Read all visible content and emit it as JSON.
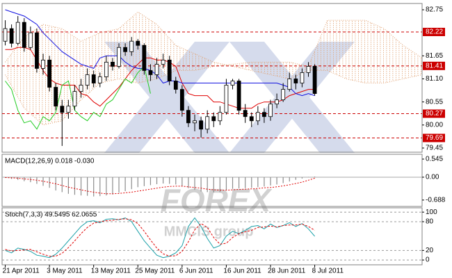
{
  "chart_data": [
    {
      "type": "candlestick",
      "xlim": [
        -0.5,
        66
      ],
      "ylim": [
        79.35,
        82.9
      ],
      "yticks": [
        79.45,
        {
          "value": 80,
          "label": "80.00"
        },
        80.55,
        {
          "value": 81.1,
          "label": "81.10"
        },
        81.65,
        82.75
      ],
      "grid": false,
      "open": [
        82.0,
        82.3,
        81.95,
        82.45,
        81.85,
        82.2,
        81.35,
        81.55,
        80.9,
        80.45,
        80.3,
        80.45,
        80.8,
        80.95,
        81.2,
        81.0,
        81.15,
        81.5,
        81.4,
        81.85,
        81.75,
        82.0,
        81.9,
        81.3,
        81.2,
        81.45,
        81.55,
        81.05,
        80.85,
        80.35,
        80.05,
        80.1,
        79.9,
        80.2,
        80.1,
        80.3,
        80.95,
        81.05,
        80.35,
        80.2,
        80.1,
        80.3,
        80.2,
        80.5,
        80.6,
        80.85,
        81.1,
        81.0,
        81.25,
        81.4
      ],
      "high": [
        82.5,
        82.4,
        82.6,
        82.55,
        82.35,
        82.3,
        81.7,
        81.65,
        81.0,
        80.6,
        80.6,
        80.95,
        81.1,
        81.35,
        81.3,
        81.25,
        81.65,
        81.6,
        81.95,
        81.95,
        82.1,
        82.05,
        81.95,
        81.45,
        81.6,
        81.7,
        81.65,
        81.15,
        80.95,
        80.45,
        80.25,
        80.2,
        80.35,
        80.3,
        80.45,
        81.1,
        81.1,
        81.1,
        80.5,
        80.3,
        80.45,
        80.4,
        80.6,
        80.75,
        81.0,
        81.25,
        81.2,
        81.35,
        81.5,
        81.45
      ],
      "low": [
        81.9,
        81.85,
        81.9,
        81.75,
        81.8,
        81.25,
        81.2,
        80.8,
        80.35,
        79.5,
        80.15,
        80.35,
        80.65,
        80.85,
        80.9,
        80.9,
        81.05,
        81.3,
        81.35,
        81.65,
        81.65,
        81.8,
        81.2,
        81.05,
        81.1,
        81.35,
        80.95,
        80.75,
        80.2,
        79.95,
        79.85,
        79.7,
        79.8,
        79.95,
        80.0,
        80.25,
        80.85,
        80.25,
        80.05,
        79.95,
        80.0,
        80.05,
        80.1,
        80.4,
        80.55,
        80.8,
        80.85,
        80.9,
        81.15,
        80.7
      ],
      "close": [
        82.3,
        81.95,
        82.45,
        81.85,
        82.2,
        81.35,
        81.55,
        80.9,
        80.45,
        80.3,
        80.45,
        80.8,
        80.95,
        81.2,
        81.0,
        81.15,
        81.5,
        81.4,
        81.85,
        81.75,
        82.0,
        81.9,
        81.3,
        81.2,
        81.45,
        81.55,
        81.05,
        80.85,
        80.35,
        80.05,
        80.1,
        79.9,
        80.2,
        80.1,
        80.3,
        80.95,
        81.05,
        80.35,
        80.2,
        80.1,
        80.3,
        80.2,
        80.5,
        80.6,
        80.85,
        81.1,
        81.0,
        81.25,
        81.4,
        80.75
      ],
      "up_color": "#ffffff",
      "down_color": "#000000",
      "series": [
        {
          "color": "#e00000",
          "values": [
            81.8,
            81.8,
            81.85,
            81.85,
            81.8,
            81.55,
            81.3,
            81.1,
            81.0,
            80.95,
            80.95,
            80.95,
            80.75,
            80.7,
            80.55,
            80.45,
            80.6,
            80.75,
            80.9,
            81.1,
            81.3,
            81.45,
            81.6,
            81.6,
            81.55,
            81.55,
            81.5,
            81.4,
            81.0,
            80.75,
            80.7,
            80.7,
            80.7,
            80.55,
            80.55,
            80.5,
            80.45,
            80.4,
            80.4,
            80.4,
            80.5,
            80.55,
            80.55,
            80.55,
            80.6,
            80.7,
            80.75,
            80.8,
            80.85,
            80.85
          ]
        },
        {
          "color": "#1010e0",
          "values": [
            82.75,
            82.7,
            82.65,
            82.6,
            82.5,
            82.4,
            82.2,
            82.05,
            81.9,
            81.75,
            81.65,
            81.55,
            81.45,
            81.4,
            81.35,
            81.6,
            81.65,
            81.65,
            81.65,
            81.5,
            81.4,
            81.35,
            81.35,
            81.3,
            81.2,
            81.0,
            81.05,
            81.05,
            81.0,
            81.0,
            81.0,
            81.0,
            81.0,
            81.0,
            81.0,
            81.0,
            81.0,
            81.0,
            81.0,
            81.0,
            81.0,
            81.0,
            81.0,
            81.0,
            80.95,
            80.9,
            80.75,
            80.7,
            80.75,
            80.7
          ]
        },
        {
          "color": "#22cc22",
          "values": [
            81.05,
            80.85,
            80.35,
            80.05,
            80.1,
            79.9,
            80.2,
            80.1,
            80.3,
            80.95,
            81.05,
            80.35,
            80.2,
            80.1,
            80.3,
            80.2,
            80.5,
            80.6,
            80.85,
            81.1,
            81.0,
            81.25,
            81.4,
            80.75,
            null,
            null,
            null,
            null,
            null,
            null,
            null,
            null,
            null,
            null,
            null,
            null,
            null,
            null,
            null,
            null,
            null,
            null,
            null,
            null,
            null,
            null,
            null,
            null,
            null,
            null
          ]
        }
      ],
      "cloud": {
        "color": "#e0a070",
        "x": [
          0,
          3,
          6,
          9,
          12,
          15,
          18,
          21,
          24,
          27,
          30,
          33,
          36,
          39,
          42,
          45,
          48,
          51,
          54,
          57,
          60,
          63,
          66
        ],
        "span_a": [
          81.5,
          82.1,
          82.4,
          82.3,
          82.0,
          82.2,
          82.3,
          82.7,
          82.4,
          81.9,
          81.7,
          81.5,
          81.4,
          81.3,
          81.2,
          81.1,
          81.3,
          81.3,
          81.1,
          81.0,
          81.0,
          81.1,
          81.2
        ],
        "span_b": [
          81.2,
          80.4,
          80.0,
          80.1,
          80.6,
          81.0,
          81.1,
          81.0,
          81.1,
          81.3,
          81.3,
          81.4,
          81.45,
          81.5,
          81.5,
          81.5,
          81.4,
          82.5,
          82.5,
          82.5,
          82.3,
          81.9,
          81.6
        ]
      },
      "levels": [
        82.22,
        81.41,
        80.27,
        79.69
      ],
      "level_color": "#cc0000"
    },
    {
      "type": "bar",
      "title": "MACD(12,26,9) 0.018 -0.030",
      "xlim": [
        -0.5,
        66
      ],
      "ylim": [
        -0.88,
        0.69
      ],
      "yticks": [
        -0.688,
        {
          "value": 0,
          "label": "0.00"
        },
        0.545
      ],
      "grid": false,
      "series": [
        {
          "kind": "bar",
          "color": "#8c8c8c",
          "values": [
            -0.02,
            -0.05,
            -0.08,
            -0.12,
            -0.15,
            -0.2,
            -0.26,
            -0.32,
            -0.4,
            -0.45,
            -0.5,
            -0.53,
            -0.55,
            -0.56,
            -0.58,
            -0.57,
            -0.55,
            -0.52,
            -0.47,
            -0.42,
            -0.36,
            -0.3,
            -0.27,
            -0.24,
            -0.21,
            -0.19,
            -0.2,
            -0.22,
            -0.27,
            -0.33,
            -0.38,
            -0.43,
            -0.45,
            -0.46,
            -0.45,
            -0.4,
            -0.35,
            -0.34,
            -0.33,
            -0.32,
            -0.3,
            -0.28,
            -0.25,
            -0.22,
            -0.18,
            -0.13,
            -0.08,
            -0.04,
            0.01,
            0.018
          ]
        },
        {
          "kind": "dash",
          "color": "#e00000",
          "values": [
            -0.01,
            -0.02,
            -0.03,
            -0.05,
            -0.07,
            -0.09,
            -0.12,
            -0.16,
            -0.2,
            -0.25,
            -0.3,
            -0.34,
            -0.38,
            -0.42,
            -0.45,
            -0.48,
            -0.5,
            -0.5,
            -0.49,
            -0.47,
            -0.45,
            -0.42,
            -0.39,
            -0.36,
            -0.33,
            -0.3,
            -0.28,
            -0.27,
            -0.27,
            -0.29,
            -0.31,
            -0.33,
            -0.36,
            -0.38,
            -0.39,
            -0.39,
            -0.38,
            -0.37,
            -0.36,
            -0.35,
            -0.34,
            -0.32,
            -0.31,
            -0.29,
            -0.26,
            -0.23,
            -0.19,
            -0.15,
            -0.09,
            -0.03
          ]
        }
      ]
    },
    {
      "type": "line",
      "title": "Stoch(7,3,3) 49.5495 62.0655",
      "xlim": [
        -0.5,
        66
      ],
      "ylim": [
        -10,
        109
      ],
      "yticks": [
        0,
        20,
        80,
        100
      ],
      "grid": true,
      "xticks": [
        {
          "value": 0,
          "label": "21 Apr 2011"
        },
        {
          "value": 7,
          "label": "3 May 2011"
        },
        {
          "value": 14,
          "label": "13 May 2011"
        },
        {
          "value": 21,
          "label": "25 May 2011"
        },
        {
          "value": 28,
          "label": "6 Jun 2011"
        },
        {
          "value": 35,
          "label": "16 Jun 2011"
        },
        {
          "value": 42,
          "label": "28 Jun 2011"
        },
        {
          "value": 49,
          "label": "8 Jul 2011"
        }
      ],
      "series": [
        {
          "kind": "solid",
          "color": "#1aa0a8",
          "values": [
            20,
            15,
            25,
            22,
            18,
            10,
            8,
            5,
            12,
            25,
            40,
            55,
            70,
            80,
            82,
            78,
            85,
            86,
            84,
            88,
            80,
            60,
            40,
            25,
            10,
            5,
            8,
            15,
            30,
            70,
            88,
            70,
            45,
            25,
            30,
            50,
            60,
            55,
            62,
            70,
            72,
            65,
            75,
            68,
            72,
            78,
            70,
            76,
            65,
            49.5495
          ]
        },
        {
          "kind": "dash",
          "color": "#e00000",
          "values": [
            22,
            19,
            20,
            21,
            22,
            17,
            12,
            8,
            8,
            14,
            26,
            40,
            55,
            68,
            77,
            80,
            82,
            83,
            85,
            86,
            84,
            76,
            60,
            42,
            25,
            13,
            8,
            9,
            18,
            38,
            63,
            76,
            68,
            47,
            33,
            35,
            47,
            55,
            59,
            62,
            68,
            69,
            71,
            69,
            72,
            73,
            73,
            75,
            70,
            62.0655
          ]
        }
      ]
    }
  ],
  "watermark": {
    "brand": "FOREX",
    "sub": "MMCIS group"
  }
}
